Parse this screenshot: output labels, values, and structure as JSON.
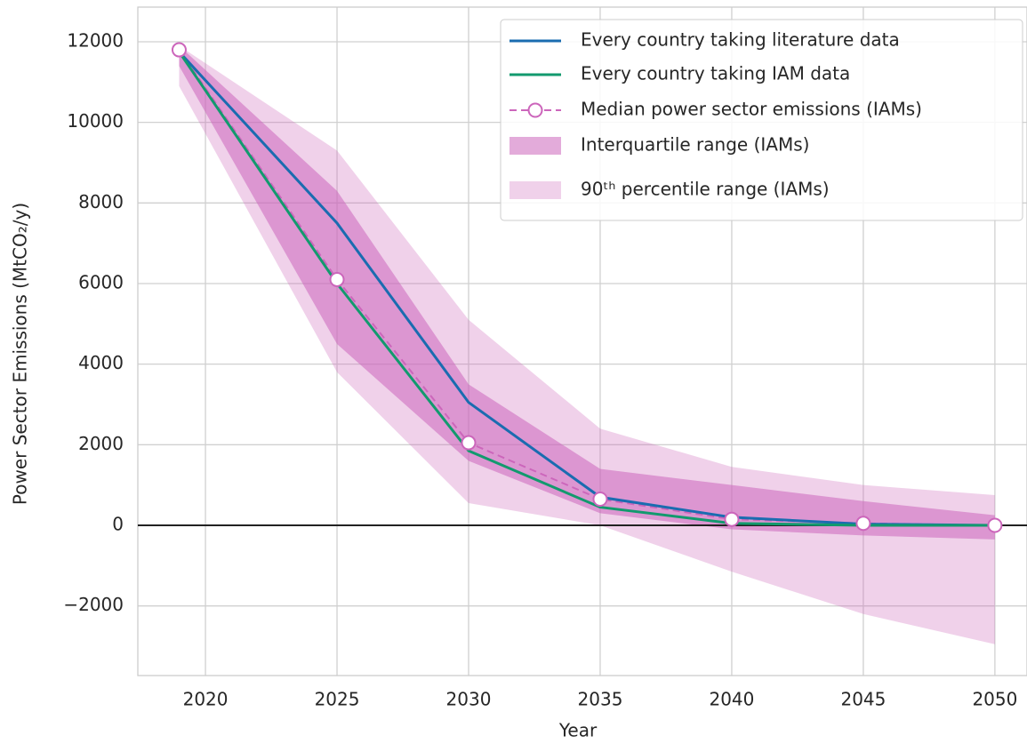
{
  "chart_data": {
    "type": "line",
    "x_label": "Year",
    "y_label": "Power Sector Emissions (MtCO₂/y)",
    "x": [
      2019,
      2025,
      2030,
      2035,
      2040,
      2045,
      2050
    ],
    "xlim": [
      2017.43,
      2051.22
    ],
    "xticks": [
      2020,
      2025,
      2030,
      2035,
      2040,
      2045,
      2050
    ],
    "ylim": [
      -3728,
      12860
    ],
    "yticks": [
      {
        "value": -2000,
        "label": "−2000"
      },
      0,
      2000,
      4000,
      6000,
      8000,
      10000,
      12000
    ],
    "grid": true,
    "axhline": 0,
    "legend": "upper right",
    "bands": [
      {
        "name": "90ᵗʰ percentile range (IAMs)",
        "color": "#cc66bb",
        "opacity": 0.3,
        "lower": [
          10900,
          3800,
          550,
          0,
          -1150,
          -2200,
          -2950
        ],
        "upper": [
          11900,
          9300,
          5100,
          2400,
          1450,
          1000,
          750
        ]
      },
      {
        "name": "Interquartile range (IAMs)",
        "color": "#cc66bb",
        "opacity": 0.55,
        "lower": [
          11400,
          4500,
          1600,
          300,
          -100,
          -250,
          -350
        ],
        "upper": [
          11900,
          8300,
          3500,
          1400,
          1000,
          600,
          250
        ]
      }
    ],
    "series": [
      {
        "name": "Median power sector emissions (IAMs)",
        "color": "#cc66bb",
        "dashed": true,
        "markers": true,
        "values": [
          11800,
          6100,
          2050,
          650,
          150,
          50,
          0
        ]
      },
      {
        "name": "Every country taking literature data",
        "color": "#1a6cb0",
        "values": [
          11750,
          7500,
          3050,
          700,
          200,
          30,
          0
        ]
      },
      {
        "name": "Every country taking IAM data",
        "color": "#129a6e",
        "values": [
          11750,
          6000,
          1850,
          450,
          50,
          0,
          0
        ]
      }
    ]
  }
}
